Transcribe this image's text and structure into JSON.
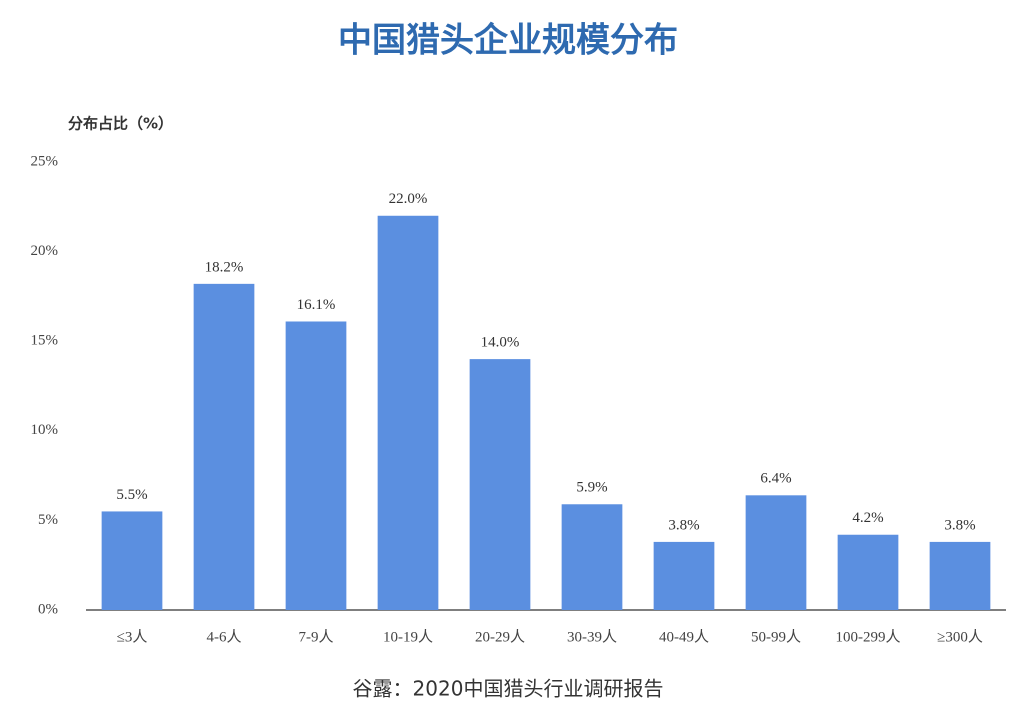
{
  "chart_data": {
    "type": "bar",
    "title": "中国猎头企业规模分布",
    "y_label": "分布占比（%）",
    "source": "谷露：2020中国猎头行业调研报告",
    "categories": [
      "≤3人",
      "4-6人",
      "7-9人",
      "10-19人",
      "20-29人",
      "30-39人",
      "40-49人",
      "50-99人",
      "100-299人",
      "≥300人"
    ],
    "values": [
      5.5,
      18.2,
      16.1,
      22.0,
      14.0,
      5.9,
      3.8,
      6.4,
      4.2,
      3.8
    ],
    "value_labels": [
      "5.5%",
      "18.2%",
      "16.1%",
      "22.0%",
      "14.0%",
      "5.9%",
      "3.8%",
      "6.4%",
      "4.2%",
      "3.8%"
    ],
    "color": "#5b8fe0",
    "ylim": [
      0,
      25
    ],
    "yticks": [
      {
        "value": 0,
        "label": "0%"
      },
      {
        "value": 5,
        "label": "5%"
      },
      {
        "value": 10,
        "label": "10%"
      },
      {
        "value": 15,
        "label": "15%"
      },
      {
        "value": 20,
        "label": "20%"
      },
      {
        "value": 25,
        "label": "25%"
      }
    ],
    "grid": false
  }
}
